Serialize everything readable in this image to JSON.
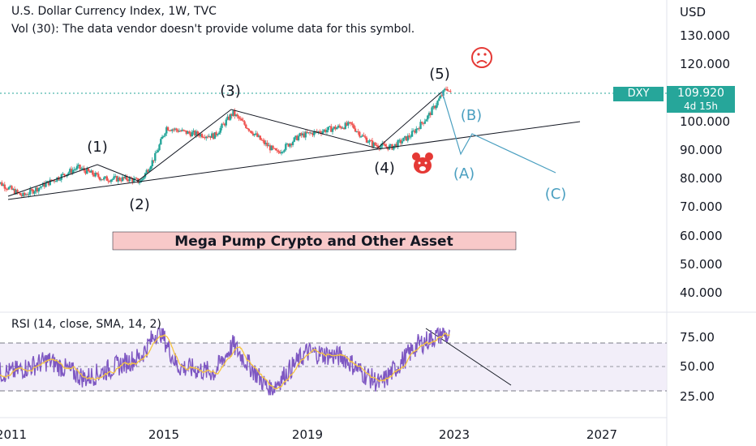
{
  "header": {
    "symbol_line": "U.S. Dollar Currency Index, 1W, TVC",
    "volume_note": "Vol (30): The data vendor doesn't provide volume data for this symbol.",
    "currency": "USD"
  },
  "price_tag": {
    "symbol": "DXY",
    "price": "109.920",
    "countdown": "4d 15h"
  },
  "annotation_box": "Mega Pump Crypto and Other Asset",
  "rsi_legend": "RSI (14, close, SMA, 14, 2)",
  "colors": {
    "up": "#26a69a",
    "down": "#ef5350",
    "rsi_line": "#7e57c2",
    "rsi_sma": "#f5c542",
    "wave_abc": "#4a9fc0",
    "tag_bg": "#26a69a",
    "box_bg": "#f8c9c9"
  },
  "icons": {
    "sad_face": "sad-face-icon",
    "bear": "bear-icon"
  },
  "chart_data": [
    {
      "type": "line",
      "title": "U.S. Dollar Currency Index, 1W, TVC",
      "x_ticks": [
        "2011",
        "2015",
        "2019",
        "2023",
        "2027"
      ],
      "y_ticks": [
        "130.000",
        "120.000",
        "110.000",
        "100.000",
        "90.000",
        "80.000",
        "70.000",
        "60.000",
        "50.000",
        "40.000"
      ],
      "ylim": [
        35,
        140
      ],
      "series": [
        {
          "values": [
            [
              2010.5,
              80
            ],
            [
              2011.3,
              74
            ],
            [
              2012.2,
              80
            ],
            [
              2012.8,
              84
            ],
            [
              2013.5,
              80
            ],
            [
              2014.2,
              80
            ],
            [
              2014.5,
              79
            ],
            [
              2014.9,
              88
            ],
            [
              2015.2,
              98
            ],
            [
              2015.8,
              96
            ],
            [
              2016.5,
              95
            ],
            [
              2017.0,
              103
            ],
            [
              2017.8,
              93
            ],
            [
              2018.2,
              89
            ],
            [
              2018.8,
              95
            ],
            [
              2019.5,
              97
            ],
            [
              2020.2,
              99
            ],
            [
              2020.5,
              95
            ],
            [
              2020.8,
              92
            ],
            [
              2021.3,
              91
            ],
            [
              2021.8,
              95
            ],
            [
              2022.3,
              102
            ],
            [
              2022.8,
              112
            ],
            [
              2022.9,
              109.9
            ]
          ]
        }
      ],
      "wave_labels": [
        {
          "text": "(1)",
          "x": 2012.7,
          "y": 84.5
        },
        {
          "text": "(2)",
          "x": 2014.4,
          "y": 79.0
        },
        {
          "text": "(3)",
          "x": 2016.9,
          "y": 103.0
        },
        {
          "text": "(4)",
          "x": 2021.5,
          "y": 90.0
        },
        {
          "text": "(5)",
          "x": 2022.8,
          "y": 114.0
        },
        {
          "text": "(A)",
          "x": 2023.2,
          "y": 90.0
        },
        {
          "text": "(B)",
          "x": 2023.4,
          "y": 96.0
        },
        {
          "text": "(C)",
          "x": 2025.5,
          "y": 82.0
        }
      ]
    },
    {
      "type": "line",
      "title": "RSI (14, close, SMA, 14, 2)",
      "y_ticks": [
        "75.00",
        "50.00",
        "25.00"
      ],
      "ylim": [
        18,
        85
      ],
      "bands": [
        30,
        70
      ],
      "series": [
        {
          "values": [
            [
              2011,
              45
            ],
            [
              2012,
              55
            ],
            [
              2013,
              40
            ],
            [
              2014.5,
              58
            ],
            [
              2015,
              82
            ],
            [
              2015.5,
              50
            ],
            [
              2016.5,
              45
            ],
            [
              2017,
              68
            ],
            [
              2018,
              30
            ],
            [
              2019,
              62
            ],
            [
              2020,
              58
            ],
            [
              2020.5,
              45
            ],
            [
              2021,
              35
            ],
            [
              2022,
              68
            ],
            [
              2022.7,
              78
            ],
            [
              2023,
              70
            ]
          ]
        }
      ]
    }
  ]
}
